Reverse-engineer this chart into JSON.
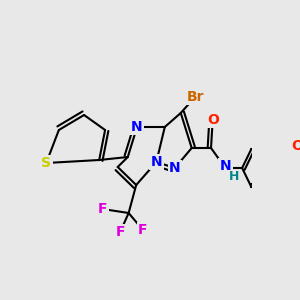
{
  "bg_color": "#e8e8e8",
  "bond_color": "#000000",
  "bond_width": 1.5,
  "atoms": {
    "S": {
      "color": "#cccc00"
    },
    "N": {
      "color": "#0000ff"
    },
    "O": {
      "color": "#ff2200"
    },
    "Br": {
      "color": "#cc6600"
    },
    "F": {
      "color": "#dd00dd"
    },
    "H": {
      "color": "#008888"
    }
  },
  "fontsize": 10
}
